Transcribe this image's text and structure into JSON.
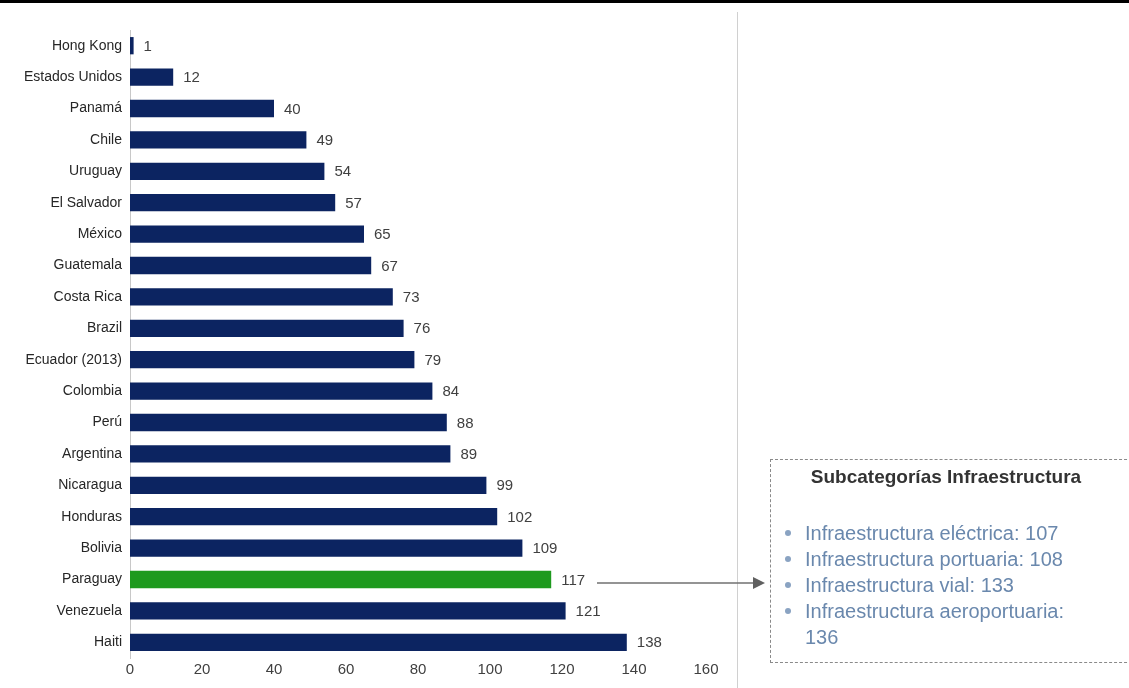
{
  "chart_data": {
    "type": "bar",
    "orientation": "horizontal",
    "categories": [
      "Hong Kong",
      "Estados Unidos",
      "Panamá",
      "Chile",
      "Uruguay",
      "El Salvador",
      "México",
      "Guatemala",
      "Costa Rica",
      "Brazil",
      "Ecuador (2013)",
      "Colombia",
      "Perú",
      "Argentina",
      "Nicaragua",
      "Honduras",
      "Bolivia",
      "Paraguay",
      "Venezuela",
      "Haiti"
    ],
    "values": [
      1,
      12,
      40,
      49,
      54,
      57,
      65,
      67,
      73,
      76,
      79,
      84,
      88,
      89,
      99,
      102,
      109,
      117,
      121,
      138
    ],
    "colors": [
      "#0c2461",
      "#0c2461",
      "#0c2461",
      "#0c2461",
      "#0c2461",
      "#0c2461",
      "#0c2461",
      "#0c2461",
      "#0c2461",
      "#0c2461",
      "#0c2461",
      "#0c2461",
      "#0c2461",
      "#0c2461",
      "#0c2461",
      "#0c2461",
      "#0c2461",
      "#1e9a1e",
      "#0c2461",
      "#0c2461"
    ],
    "xlim": [
      0,
      160
    ],
    "xticks": [
      0,
      20,
      40,
      60,
      80,
      100,
      120,
      140,
      160
    ],
    "data_labels": true,
    "grid": false,
    "legend": false,
    "annotations": [
      "Subcategorías Infraestructura",
      "Infraestructura eléctrica: 107",
      "Infraestructura portuaria: 108",
      "Infraestructura vial: 133",
      "Infraestructura aeroportuaria: 136"
    ]
  }
}
